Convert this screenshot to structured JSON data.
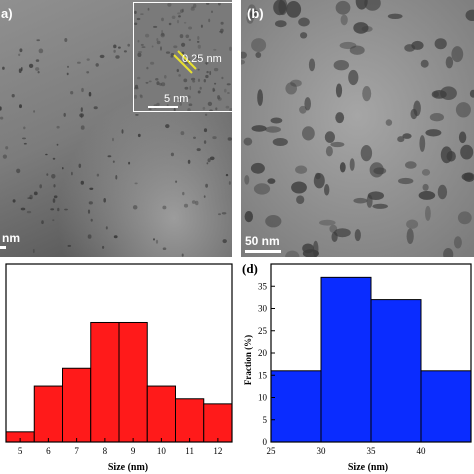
{
  "panel_a": {
    "label": "a)",
    "scale_bar": "nm",
    "inset": {
      "lattice_spacing": "0.25 nm",
      "scale_bar": "5 nm"
    }
  },
  "panel_b": {
    "label": "(b)",
    "scale_bar": "50 nm"
  },
  "chart_data": [
    {
      "type": "bar",
      "label": "",
      "xlabel": "Size (nm)",
      "ylabel": "",
      "xlim": [
        4.5,
        12.5
      ],
      "ylim": [
        0,
        35
      ],
      "x_ticks": [
        "5",
        "6",
        "7",
        "8",
        "9",
        "10",
        "11",
        "12"
      ],
      "y_ticks": [],
      "bins": [
        [
          4.5,
          5.5
        ],
        [
          5.5,
          6.5
        ],
        [
          6.5,
          7.5
        ],
        [
          7.5,
          8.5
        ],
        [
          8.5,
          9.5
        ],
        [
          9.5,
          10.5
        ],
        [
          10.5,
          11.5
        ],
        [
          11.5,
          12.5
        ]
      ],
      "values": [
        2,
        11,
        14.5,
        23.5,
        23.5,
        11,
        8.5,
        7.5
      ],
      "color": "#ff1a1a",
      "edge_color": "#000000"
    },
    {
      "type": "bar",
      "label": "(d)",
      "xlabel": "Size (nm)",
      "ylabel": "Fraction (%)",
      "xlim": [
        25,
        45
      ],
      "ylim": [
        0,
        40
      ],
      "x_ticks": [
        "25",
        "30",
        "35",
        "40"
      ],
      "y_ticks": [
        "0",
        "5",
        "10",
        "15",
        "20",
        "25",
        "30",
        "35"
      ],
      "bins": [
        [
          25,
          30
        ],
        [
          30,
          35
        ],
        [
          35,
          40
        ],
        [
          40,
          45
        ]
      ],
      "values": [
        16,
        37,
        32,
        16
      ],
      "color": "#0a2cff",
      "edge_color": "#000000"
    }
  ]
}
